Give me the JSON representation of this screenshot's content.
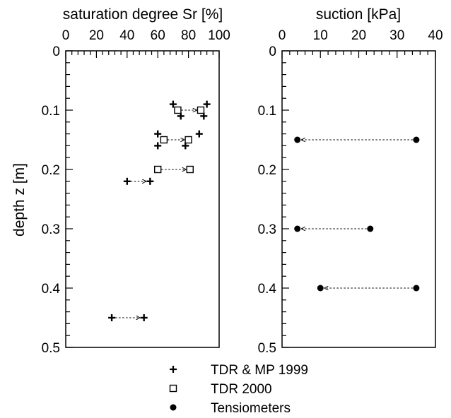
{
  "chart_data": [
    {
      "type": "scatter",
      "title": "saturation degree Sr [%]",
      "xlabel": "",
      "ylabel": "depth z [m]",
      "xlim": [
        0,
        100
      ],
      "ylim": [
        0.5,
        0
      ],
      "x_ticks": [
        "0",
        "20",
        "40",
        "60",
        "80",
        "100"
      ],
      "y_ticks": [
        "0",
        "0.1",
        "0.2",
        "0.3",
        "0.4",
        "0.5"
      ],
      "series": [
        {
          "name": "TDR & MP 1999",
          "marker": "plus",
          "points": [
            {
              "x": 70,
              "y": 0.09
            },
            {
              "x": 92,
              "y": 0.09
            },
            {
              "x": 75,
              "y": 0.11
            },
            {
              "x": 90,
              "y": 0.11
            },
            {
              "x": 60,
              "y": 0.14
            },
            {
              "x": 87,
              "y": 0.14
            },
            {
              "x": 60,
              "y": 0.16
            },
            {
              "x": 78,
              "y": 0.16
            },
            {
              "x": 40,
              "y": 0.22
            },
            {
              "x": 55,
              "y": 0.22
            },
            {
              "x": 30,
              "y": 0.45
            },
            {
              "x": 51,
              "y": 0.45
            }
          ]
        },
        {
          "name": "TDR 2000",
          "marker": "square",
          "points": [
            {
              "x": 73,
              "y": 0.1
            },
            {
              "x": 88,
              "y": 0.1
            },
            {
              "x": 64,
              "y": 0.15
            },
            {
              "x": 80,
              "y": 0.15
            },
            {
              "x": 60,
              "y": 0.2
            },
            {
              "x": 81,
              "y": 0.2
            }
          ]
        }
      ],
      "arrows": [
        {
          "from": [
            73,
            0.1
          ],
          "to": [
            88,
            0.1
          ]
        },
        {
          "from": [
            64,
            0.15
          ],
          "to": [
            80,
            0.15
          ]
        },
        {
          "from": [
            60,
            0.2
          ],
          "to": [
            81,
            0.2
          ]
        },
        {
          "from": [
            40,
            0.22
          ],
          "to": [
            55,
            0.22
          ]
        },
        {
          "from": [
            30,
            0.45
          ],
          "to": [
            51,
            0.45
          ]
        }
      ]
    },
    {
      "type": "scatter",
      "title": "suction [kPa]",
      "xlabel": "",
      "ylabel": "",
      "xlim": [
        0,
        40
      ],
      "ylim": [
        0.5,
        0
      ],
      "x_ticks": [
        "0",
        "10",
        "20",
        "30",
        "40"
      ],
      "y_ticks": [
        "0",
        "0.1",
        "0.2",
        "0.3",
        "0.4",
        "0.5"
      ],
      "series": [
        {
          "name": "Tensiometers",
          "marker": "circle",
          "points": [
            {
              "x": 35,
              "y": 0.15
            },
            {
              "x": 4,
              "y": 0.15
            },
            {
              "x": 23,
              "y": 0.3
            },
            {
              "x": 4,
              "y": 0.3
            },
            {
              "x": 35,
              "y": 0.4
            },
            {
              "x": 10,
              "y": 0.4
            }
          ]
        }
      ],
      "arrows": [
        {
          "from": [
            35,
            0.15
          ],
          "to": [
            4,
            0.15
          ]
        },
        {
          "from": [
            23,
            0.3
          ],
          "to": [
            4,
            0.3
          ]
        },
        {
          "from": [
            35,
            0.4
          ],
          "to": [
            10,
            0.4
          ]
        }
      ]
    }
  ],
  "legend": {
    "placement": "bottom-center",
    "items": [
      {
        "label": "TDR & MP 1999",
        "marker": "plus"
      },
      {
        "label": "TDR 2000",
        "marker": "square"
      },
      {
        "label": "Tensiometers",
        "marker": "circle"
      }
    ]
  }
}
